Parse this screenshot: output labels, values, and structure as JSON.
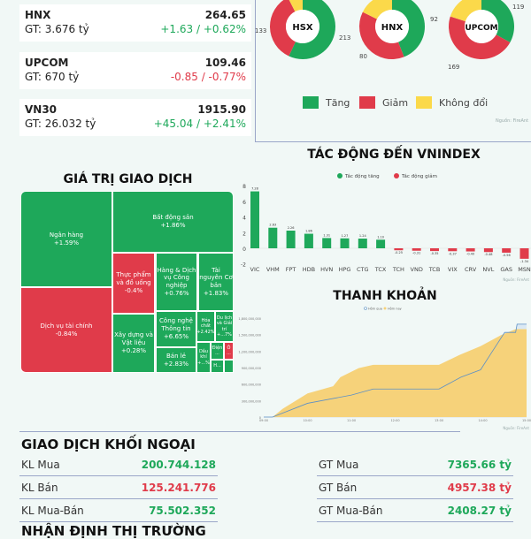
{
  "indices": [
    {
      "name": "HNX",
      "gt": "GT: 3.676 tỷ",
      "value": "264.65",
      "change": "+1.63 / +0.62%",
      "dir": "up"
    },
    {
      "name": "UPCOM",
      "gt": "GT: 670 tỷ",
      "value": "109.46",
      "change": "-0.85 / -0.77%",
      "dir": "down"
    },
    {
      "name": "VN30",
      "gt": "GT: 26.032 tỷ",
      "value": "1915.90",
      "change": "+45.04 / +2.41%",
      "dir": "up"
    }
  ],
  "colors": {
    "up": "#1ea85a",
    "down": "#e03b4a",
    "flat": "#fbd94a",
    "area": "#f6d27a",
    "line": "#5b8fc6"
  },
  "chart_data": [
    {
      "type": "pie",
      "title": "",
      "legend": [
        "Tăng",
        "Giảm",
        "Không đổi"
      ],
      "donuts": [
        {
          "label": "HSX",
          "up": 213,
          "down": 133,
          "flat": 28,
          "up_label": "213",
          "down_label": "133"
        },
        {
          "label": "HNX",
          "up": 92,
          "down": 80,
          "flat": 37,
          "up_label": "92",
          "down_label": "80"
        },
        {
          "label": "UPCOM",
          "up": 119,
          "down": 169,
          "flat": 72,
          "up_label": "119",
          "down_label": "169"
        }
      ],
      "source": "Nguồn: FireAnt"
    },
    {
      "type": "bar",
      "title": "TÁC ĐỘNG ĐẾN VNINDEX",
      "legend": [
        "Tác động tăng",
        "Tác động giảm"
      ],
      "categories": [
        "VIC",
        "VHM",
        "FPT",
        "HDB",
        "HVN",
        "HPG",
        "CTG",
        "TCX",
        "TCH",
        "VND",
        "TCB",
        "VIX",
        "CRV",
        "NVL",
        "GAS",
        "MSN"
      ],
      "values": [
        7.28,
        2.63,
        2.26,
        1.86,
        1.31,
        1.27,
        1.24,
        1.1,
        -0.25,
        -0.31,
        -0.35,
        -0.37,
        -0.4,
        -0.48,
        -0.56,
        -1.34
      ],
      "yticks": [
        "8",
        "6",
        "4",
        "2",
        "0",
        "-2"
      ],
      "ylim": [
        -2,
        8
      ],
      "source": "Nguồn: FireAnt"
    },
    {
      "type": "treemap",
      "title": "GIÁ TRỊ GIAO DỊCH",
      "items": [
        {
          "label": "Ngân hàng",
          "value": "+1.59%",
          "dir": "up"
        },
        {
          "label": "Dịch vụ tài chính",
          "value": "-0.84%",
          "dir": "down"
        },
        {
          "label": "Bất động sản",
          "value": "+1.86%",
          "dir": "up"
        },
        {
          "label": "Thực phẩm và đồ uống",
          "value": "-0.4%",
          "dir": "down"
        },
        {
          "label": "Xây dựng và Vật liệu",
          "value": "+0.28%",
          "dir": "up"
        },
        {
          "label": "Hàng & Dịch vụ Công nghiệp",
          "value": "+0.76%",
          "dir": "up"
        },
        {
          "label": "Tài nguyên Cơ bản",
          "value": "+1.83%",
          "dir": "up"
        },
        {
          "label": "Công nghệ Thông tin",
          "value": "+6.65%",
          "dir": "up"
        },
        {
          "label": "Bán lẻ",
          "value": "+2.83%",
          "dir": "up"
        },
        {
          "label": "Hóa chất",
          "value": "+2.42%",
          "dir": "up"
        },
        {
          "label": "Du lịch và Giải trí",
          "value": "+...7%",
          "dir": "up"
        },
        {
          "label": "Dầu khí",
          "value": "+...%",
          "dir": "up"
        },
        {
          "label": "Điện",
          "value": "...",
          "dir": "up"
        },
        {
          "label": "Ô",
          "value": "...",
          "dir": "down"
        },
        {
          "label": "H...",
          "value": "",
          "dir": "up"
        },
        {
          "label": "",
          "value": "",
          "dir": "up"
        }
      ]
    },
    {
      "type": "area",
      "title": "THANH KHOẢN",
      "legend": [
        "Hôm qua",
        "Hôm nay"
      ],
      "xticks": [
        "09:00",
        "10:00",
        "11:00",
        "12:00",
        "13:00",
        "14:00",
        "15:00"
      ],
      "yticks": [
        "0",
        "300,000,000",
        "600,000,000",
        "900,000,000",
        "1,200,000,000",
        "1,500,000,000",
        "1,800,000,000"
      ],
      "ylim": [
        0,
        1800000000
      ],
      "series": [
        {
          "name": "Hôm nay",
          "points": [
            [
              "09:00",
              0
            ],
            [
              "09:12",
              0
            ],
            [
              "09:26",
              150000000
            ],
            [
              "10:00",
              430000000
            ],
            [
              "10:35",
              560000000
            ],
            [
              "10:45",
              725000000
            ],
            [
              "11:10",
              890000000
            ],
            [
              "11:30",
              950000000
            ],
            [
              "13:00",
              950000000
            ],
            [
              "13:28",
              1130000000
            ],
            [
              "13:57",
              1290000000
            ],
            [
              "14:25",
              1490000000
            ],
            [
              "14:45",
              1600000000
            ],
            [
              "15:00",
              1600000000
            ]
          ]
        },
        {
          "name": "Hôm qua",
          "points": [
            [
              "09:00",
              0
            ],
            [
              "09:12",
              0
            ],
            [
              "10:00",
              250000000
            ],
            [
              "11:00",
              400000000
            ],
            [
              "11:30",
              510000000
            ],
            [
              "13:00",
              510000000
            ],
            [
              "13:30",
              725000000
            ],
            [
              "13:57",
              860000000
            ],
            [
              "14:10",
              1130000000
            ],
            [
              "14:30",
              1540000000
            ],
            [
              "14:45",
              1540000000
            ],
            [
              "14:47",
              1690000000
            ],
            [
              "15:00",
              1690000000
            ]
          ]
        }
      ],
      "source": "Nguồn: FireAnt"
    }
  ],
  "foreign": {
    "title": "GIAO DỊCH KHỐI NGOẠI",
    "left": [
      {
        "label": "KL Mua",
        "value": "200.744.128",
        "dir": "up"
      },
      {
        "label": "KL Bán",
        "value": "125.241.776",
        "dir": "down"
      },
      {
        "label": "KL Mua-Bán",
        "value": "75.502.352",
        "dir": "up"
      }
    ],
    "right": [
      {
        "label": "GT Mua",
        "value": "7365.66 tỷ",
        "dir": "up"
      },
      {
        "label": "GT Bán",
        "value": "4957.38 tỷ",
        "dir": "down"
      },
      {
        "label": "GT Mua-Bán",
        "value": "2408.27 tỷ",
        "dir": "up"
      }
    ]
  },
  "next_section_title": "NHẬN ĐỊNH THỊ TRƯỜNG"
}
